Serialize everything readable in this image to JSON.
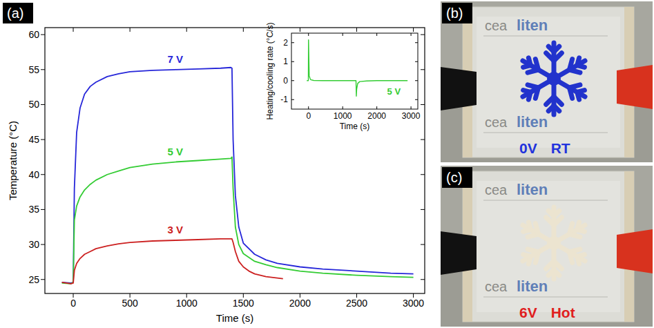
{
  "chart_data": [
    {
      "type": "line",
      "panel": "(a)",
      "x_label": "Time (s)",
      "y_label": "Temperature (°C)",
      "xlim": [
        -250,
        3100
      ],
      "ylim": [
        23,
        61
      ],
      "xticks": [
        0,
        500,
        1000,
        1500,
        2000,
        2500,
        3000
      ],
      "yticks": [
        25,
        30,
        35,
        40,
        45,
        50,
        55,
        60
      ],
      "series": [
        {
          "name": "7 V",
          "color": "#2626d9",
          "x": [
            -100,
            -20,
            0,
            10,
            30,
            60,
            100,
            150,
            200,
            300,
            400,
            500,
            700,
            900,
            1100,
            1300,
            1390,
            1400,
            1410,
            1430,
            1460,
            1500,
            1600,
            1700,
            1800,
            2000,
            2200,
            2500,
            2800,
            3000
          ],
          "values": [
            24.6,
            24.5,
            24.6,
            38,
            46,
            49.5,
            51.5,
            52.6,
            53.2,
            54,
            54.4,
            54.7,
            54.9,
            55,
            55.1,
            55.2,
            55.3,
            55.2,
            45,
            37,
            32.5,
            30.2,
            28.6,
            27.8,
            27.3,
            26.8,
            26.5,
            26.2,
            25.9,
            25.8
          ]
        },
        {
          "name": "5 V",
          "color": "#33cc33",
          "x": [
            -100,
            -20,
            0,
            10,
            30,
            60,
            100,
            150,
            200,
            300,
            400,
            500,
            700,
            900,
            1100,
            1300,
            1390,
            1400,
            1410,
            1430,
            1460,
            1500,
            1600,
            1700,
            1800,
            2000,
            2200,
            2500,
            2800,
            3000
          ],
          "values": [
            24.5,
            24.4,
            24.6,
            33.5,
            35.5,
            36.8,
            37.8,
            38.6,
            39.2,
            40,
            40.5,
            41,
            41.5,
            41.8,
            42,
            42.2,
            42.3,
            42.5,
            38,
            32.5,
            30,
            28.7,
            27.6,
            27.1,
            26.7,
            26.2,
            25.9,
            25.6,
            25.4,
            25.3
          ]
        },
        {
          "name": "3 V",
          "color": "#cc2020",
          "x": [
            -100,
            -20,
            0,
            10,
            30,
            60,
            100,
            150,
            200,
            300,
            400,
            500,
            700,
            900,
            1100,
            1300,
            1390,
            1400,
            1410,
            1430,
            1460,
            1500,
            1550,
            1600,
            1700,
            1800,
            1850
          ],
          "values": [
            24.6,
            24.4,
            24.5,
            26.3,
            27.3,
            28,
            28.6,
            29,
            29.4,
            29.8,
            30.1,
            30.3,
            30.5,
            30.6,
            30.7,
            30.8,
            30.8,
            30.8,
            30.3,
            29,
            27.6,
            26.8,
            26.2,
            25.8,
            25.4,
            25.2,
            25.1
          ]
        }
      ]
    },
    {
      "type": "line",
      "x_label": "Time (s)",
      "y_label": "Heating/cooling rate (°C/s)",
      "xlim": [
        -500,
        3200
      ],
      "ylim": [
        -1.5,
        2.5
      ],
      "xticks": [
        0,
        1000,
        2000,
        3000
      ],
      "yticks": [
        -1,
        0,
        1,
        2
      ],
      "series": [
        {
          "name": "5 V",
          "color": "#33cc33",
          "x": [
            -50,
            -5,
            0,
            20,
            60,
            150,
            400,
            800,
            1200,
            1390,
            1400,
            1410,
            1440,
            1500,
            1700,
            2000,
            2500,
            2900
          ],
          "values": [
            0,
            0,
            2.15,
            0.25,
            0.05,
            0.01,
            0,
            0,
            0,
            0,
            -0.82,
            -0.45,
            -0.15,
            -0.05,
            -0.02,
            0,
            0,
            0
          ]
        }
      ]
    }
  ],
  "photos": [
    {
      "panel": "(b)",
      "logo": [
        "cea",
        "liten"
      ],
      "voltage": "0V",
      "state": "RT"
    },
    {
      "panel": "(c)",
      "logo": [
        "cea",
        "liten"
      ],
      "voltage": "6V",
      "state": "Hot"
    }
  ]
}
